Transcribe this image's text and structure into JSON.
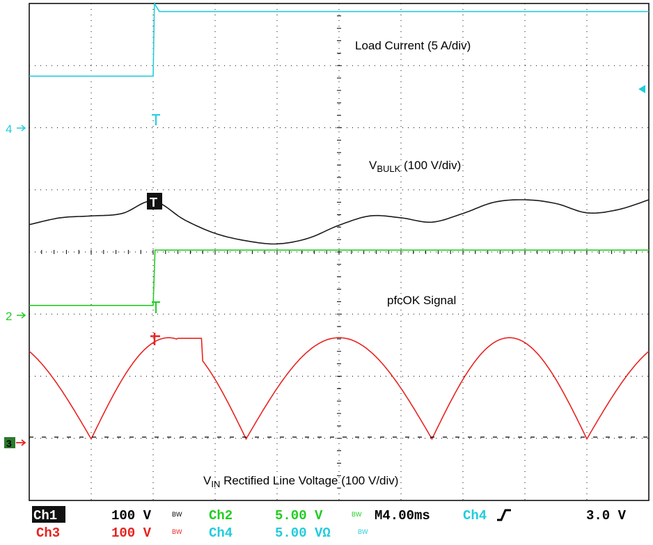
{
  "colors": {
    "ch1": "#1a1a1a",
    "ch2": "#22cc22",
    "ch3": "#e8231f",
    "ch4": "#22ccdd",
    "grid": "#000000"
  },
  "annotations": {
    "load_current": "Load Current (5 A/div)",
    "vbulk_main": "V",
    "vbulk_sub": "BULK",
    "vbulk_rest": " (100 V/div)",
    "pfcok": "pfcOK Signal",
    "vin_main": "V",
    "vin_sub": "IN",
    "vin_rest": " Rectified Line Voltage (100 V/div)"
  },
  "markers": {
    "ch4_ref": "4",
    "ch2_ref": "2",
    "ch3_ref": "3",
    "ch1_trigger": "T"
  },
  "readout": {
    "row1": {
      "ch1_label": "Ch1",
      "ch1_scale": "100 V",
      "ch1_bw": "BW",
      "ch2_label": "Ch2",
      "ch2_scale": "5.00 V",
      "ch2_bw": "BW",
      "timebase": "M4.00ms",
      "trig_source": "Ch4",
      "trig_slope": "rising-edge-icon",
      "trig_level": "3.0 V"
    },
    "row2": {
      "ch3_label": "Ch3",
      "ch3_scale": "100 V",
      "ch3_bw": "BW",
      "ch4_label": "Ch4",
      "ch4_scale": "5.00 VΩ",
      "ch4_bw": "BW"
    }
  },
  "chart_data": {
    "type": "line",
    "subtype": "oscilloscope-capture",
    "grid": true,
    "x_divisions": 10,
    "y_divisions": 8,
    "x_unit": "div (4.00 ms/div)",
    "y_unit": "div",
    "xlim": [
      0,
      10
    ],
    "ylim": [
      0,
      8
    ],
    "trigger_time_div": 2.0,
    "series": [
      {
        "channel": "Ch4",
        "name": "Load Current (5 A/div)",
        "color": "#22ccdd",
        "reference_level_div": 6.83,
        "x": [
          0,
          2.0,
          2.02,
          2.1,
          10
        ],
        "y": [
          6.83,
          6.83,
          8.0,
          7.87,
          7.87
        ]
      },
      {
        "channel": "Ch1",
        "name": "VBULK (100 V/div)",
        "color": "#1a1a1a",
        "x": [
          0,
          0.5,
          1.0,
          1.5,
          2.0,
          2.5,
          3.0,
          3.5,
          4.0,
          4.5,
          5.0,
          5.5,
          6.0,
          6.5,
          7.0,
          7.5,
          8.0,
          8.5,
          9.0,
          9.5,
          10.0
        ],
        "y": [
          4.44,
          4.55,
          4.58,
          4.62,
          4.82,
          4.52,
          4.3,
          4.18,
          4.13,
          4.22,
          4.43,
          4.58,
          4.55,
          4.48,
          4.62,
          4.8,
          4.84,
          4.78,
          4.63,
          4.68,
          4.84
        ]
      },
      {
        "channel": "Ch2",
        "name": "pfcOK Signal",
        "color": "#22cc22",
        "reference_level_div": 3.14,
        "x": [
          0,
          2.0,
          2.03,
          10
        ],
        "y": [
          3.14,
          3.14,
          4.03,
          4.03
        ]
      },
      {
        "channel": "Ch3",
        "name": "VIN Rectified Line Voltage (100 V/div)",
        "color": "#e8231f",
        "reference_level_div": 1.02,
        "x": [
          0,
          1.0,
          2.0,
          2.4,
          2.8,
          3.5,
          5.0,
          6.5,
          7.5,
          9.0,
          10.0
        ],
        "y": [
          2.32,
          0.99,
          2.32,
          2.61,
          2.61,
          0.99,
          2.32,
          0.99,
          2.32,
          0.99,
          2.32
        ]
      }
    ]
  }
}
